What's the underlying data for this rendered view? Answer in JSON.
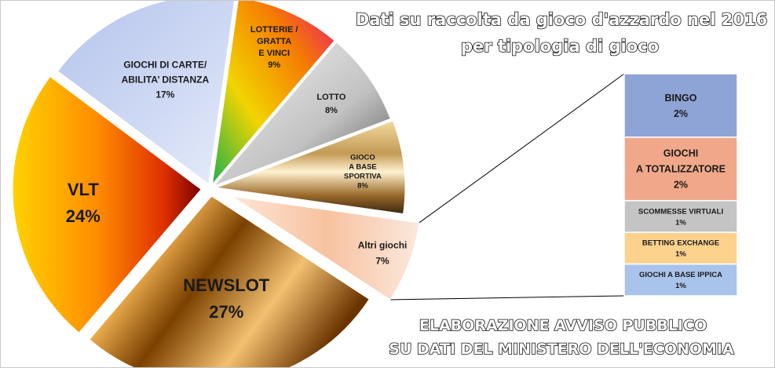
{
  "title_lines": [
    "Dati su raccolta da gioco d'azzardo nel 2016",
    "per tipologia di gioco"
  ],
  "credit_lines": [
    "ELABORAZIONE AVVISO PUBBLICO",
    "SU DATI  DEL MINISTERO DELL'ECONOMIA"
  ],
  "chart_data": {
    "type": "pie",
    "title": "Dati su raccolta da gioco d'azzardo nel 2016 per tipologia di gioco",
    "unit": "%",
    "slices": [
      {
        "label": "LOTTERIE / GRATTA E VINCI",
        "label_lines": [
          "LOTTERIE /",
          "GRATTA",
          "E VINCI"
        ],
        "value": 9,
        "value_label": "9%",
        "color": "#e8a000"
      },
      {
        "label": "LOTTO",
        "label_lines": [
          "LOTTO"
        ],
        "value": 8,
        "value_label": "8%",
        "color": "#b0b0b0"
      },
      {
        "label": "GIOCO A BASE SPORTIVA",
        "label_lines": [
          "GIOCO",
          "A BASE",
          "SPORTIVA"
        ],
        "value": 8,
        "value_label": "8%",
        "color": "#b08840"
      },
      {
        "label": "Altri giochi",
        "label_lines": [
          "Altri giochi"
        ],
        "value": 7,
        "value_label": "7%",
        "color": "#f6c8a8"
      },
      {
        "label": "NEWSLOT",
        "label_lines": [
          "NEWSLOT"
        ],
        "value": 27,
        "value_label": "27%",
        "color": "#b46a00"
      },
      {
        "label": "VLT",
        "label_lines": [
          "VLT"
        ],
        "value": 24,
        "value_label": "24%",
        "color": "#f07000"
      },
      {
        "label": "GIOCHI DI CARTE/ ABILITA' DISTANZA",
        "label_lines": [
          "GIOCHI DI CARTE/",
          "ABILITA’ DISTANZA"
        ],
        "value": 17,
        "value_label": "17%",
        "color": "#c4d0ee"
      }
    ],
    "breakdown": {
      "of": "Altri giochi",
      "type": "stacked-bar",
      "items": [
        {
          "label": "BINGO",
          "label_lines": [
            "BINGO"
          ],
          "value": 2,
          "value_label": "2%",
          "color": "#8ea3d6"
        },
        {
          "label": "GIOCHI A TOTALIZZATORE",
          "label_lines": [
            "GIOCHI",
            "A TOTALIZZATORE"
          ],
          "value": 2,
          "value_label": "2%",
          "color": "#f1a88a"
        },
        {
          "label": "SCOMMESSE VIRTUALI",
          "label_lines": [
            "SCOMMESSE  VIRTUALI"
          ],
          "value": 1,
          "value_label": "1%",
          "color": "#c4c4c4"
        },
        {
          "label": "BETTING EXCHANGE",
          "label_lines": [
            "BETTING  EXCHANGE"
          ],
          "value": 1,
          "value_label": "1%",
          "color": "#fcd28c"
        },
        {
          "label": "GIOCHI A BASE IPPICA",
          "label_lines": [
            "GIOCHI  A BASE IPPICA"
          ],
          "value": 1,
          "value_label": "1%",
          "color": "#a8c4ea"
        }
      ]
    }
  }
}
